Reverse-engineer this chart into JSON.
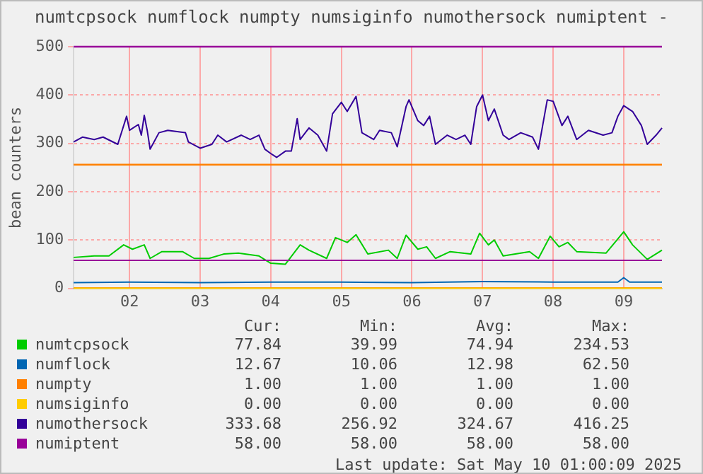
{
  "chart_data": {
    "type": "line",
    "title": "numtcpsock numflock numpty numsiginfo numothersock numiptent -",
    "ylabel": "bean counters",
    "xlim": [
      "2025-05-01T17:00",
      "2025-05-10T01:00"
    ],
    "xticks": [
      {
        "value": "2025-05-02T12:00",
        "label": "02"
      },
      {
        "value": "2025-05-03T12:00",
        "label": "03"
      },
      {
        "value": "2025-05-04T12:00",
        "label": "04"
      },
      {
        "value": "2025-05-05T12:00",
        "label": "05"
      },
      {
        "value": "2025-05-06T12:00",
        "label": "06"
      },
      {
        "value": "2025-05-07T12:00",
        "label": "07"
      },
      {
        "value": "2025-05-08T12:00",
        "label": "08"
      },
      {
        "value": "2025-05-09T12:00",
        "label": "09"
      }
    ],
    "ylim": [
      0,
      500
    ],
    "yticks": [
      0,
      100,
      200,
      300,
      400,
      500
    ],
    "grid": true,
    "legend": "bottom",
    "marker": "none",
    "ref_lines": [
      {
        "axis": "y",
        "value": 256,
        "label": null,
        "color": "#ff8000"
      },
      {
        "axis": "y",
        "value": 500,
        "label": null,
        "color": "#990099"
      }
    ],
    "series": [
      {
        "name": "numtcpsock",
        "color": "#00cc00",
        "x": [
          "2025-05-01T17:00",
          "2025-05-02T00:00",
          "2025-05-02T05:00",
          "2025-05-02T10:00",
          "2025-05-02T13:00",
          "2025-05-02T17:00",
          "2025-05-02T19:00",
          "2025-05-02T23:00",
          "2025-05-03T06:00",
          "2025-05-03T10:00",
          "2025-05-03T15:00",
          "2025-05-03T20:00",
          "2025-05-04T01:00",
          "2025-05-04T08:00",
          "2025-05-04T12:00",
          "2025-05-04T17:00",
          "2025-05-04T22:00",
          "2025-05-05T01:00",
          "2025-05-05T07:00",
          "2025-05-05T10:00",
          "2025-05-05T14:00",
          "2025-05-05T17:00",
          "2025-05-05T21:00",
          "2025-05-06T04:00",
          "2025-05-06T07:00",
          "2025-05-06T10:00",
          "2025-05-06T14:00",
          "2025-05-06T17:00",
          "2025-05-06T20:00",
          "2025-05-07T01:00",
          "2025-05-07T08:00",
          "2025-05-07T11:00",
          "2025-05-07T14:00",
          "2025-05-07T16:00",
          "2025-05-07T19:00",
          "2025-05-08T04:00",
          "2025-05-08T07:00",
          "2025-05-08T11:00",
          "2025-05-08T14:00",
          "2025-05-08T17:00",
          "2025-05-08T20:00",
          "2025-05-09T06:00",
          "2025-05-09T12:00",
          "2025-05-09T15:00",
          "2025-05-09T20:00",
          "2025-05-10T01:00"
        ],
        "values": [
          64,
          67,
          67,
          90,
          81,
          90,
          62,
          76,
          76,
          62,
          62,
          71,
          73,
          67,
          52,
          50,
          90,
          79,
          62,
          105,
          95,
          111,
          71,
          79,
          62,
          110,
          81,
          86,
          62,
          76,
          71,
          114,
          90,
          100,
          67,
          76,
          62,
          108,
          86,
          95,
          76,
          73,
          117,
          90,
          60,
          79
        ]
      },
      {
        "name": "numflock",
        "color": "#0066b3",
        "x": [
          "2025-05-01T17:00",
          "2025-05-02T12:00",
          "2025-05-03T12:00",
          "2025-05-04T12:00",
          "2025-05-05T12:00",
          "2025-05-06T12:00",
          "2025-05-07T12:00",
          "2025-05-08T12:00",
          "2025-05-09T10:00",
          "2025-05-09T12:00",
          "2025-05-09T14:00",
          "2025-05-10T01:00"
        ],
        "values": [
          12,
          13,
          12,
          13,
          13,
          12,
          14,
          13,
          13,
          22,
          13,
          13
        ]
      },
      {
        "name": "numpty",
        "color": "#ff8000",
        "x": [
          "2025-05-01T17:00",
          "2025-05-10T01:00"
        ],
        "values": [
          1,
          1
        ]
      },
      {
        "name": "numsiginfo",
        "color": "#ffcc00",
        "x": [
          "2025-05-01T17:00",
          "2025-05-10T01:00"
        ],
        "values": [
          0,
          0
        ]
      },
      {
        "name": "numothersock",
        "color": "#330099",
        "x": [
          "2025-05-01T17:00",
          "2025-05-01T20:00",
          "2025-05-02T00:00",
          "2025-05-02T03:00",
          "2025-05-02T08:00",
          "2025-05-02T11:00",
          "2025-05-02T12:00",
          "2025-05-02T15:00",
          "2025-05-02T16:00",
          "2025-05-02T17:00",
          "2025-05-02T18:00",
          "2025-05-02T19:00",
          "2025-05-02T22:00",
          "2025-05-03T01:00",
          "2025-05-03T07:00",
          "2025-05-03T08:00",
          "2025-05-03T12:00",
          "2025-05-03T16:00",
          "2025-05-03T18:00",
          "2025-05-03T21:00",
          "2025-05-04T02:00",
          "2025-05-04T05:00",
          "2025-05-04T08:00",
          "2025-05-04T10:00",
          "2025-05-04T12:00",
          "2025-05-04T14:00",
          "2025-05-04T17:00",
          "2025-05-04T19:00",
          "2025-05-04T21:00",
          "2025-05-04T22:00",
          "2025-05-05T01:00",
          "2025-05-05T04:00",
          "2025-05-05T07:00",
          "2025-05-05T09:00",
          "2025-05-05T12:00",
          "2025-05-05T14:00",
          "2025-05-05T17:00",
          "2025-05-05T19:00",
          "2025-05-05T23:00",
          "2025-05-06T01:00",
          "2025-05-06T05:00",
          "2025-05-06T07:00",
          "2025-05-06T10:00",
          "2025-05-06T11:00",
          "2025-05-06T14:00",
          "2025-05-06T16:00",
          "2025-05-06T18:00",
          "2025-05-06T20:00",
          "2025-05-07T00:00",
          "2025-05-07T03:00",
          "2025-05-07T06:00",
          "2025-05-07T08:00",
          "2025-05-07T10:00",
          "2025-05-07T12:00",
          "2025-05-07T14:00",
          "2025-05-07T16:00",
          "2025-05-07T19:00",
          "2025-05-07T21:00",
          "2025-05-08T01:00",
          "2025-05-08T05:00",
          "2025-05-08T07:00",
          "2025-05-08T10:00",
          "2025-05-08T12:00",
          "2025-05-08T15:00",
          "2025-05-08T17:00",
          "2025-05-08T20:00",
          "2025-05-09T00:00",
          "2025-05-09T05:00",
          "2025-05-09T08:00",
          "2025-05-09T10:00",
          "2025-05-09T12:00",
          "2025-05-09T15:00",
          "2025-05-09T18:00",
          "2025-05-09T20:00",
          "2025-05-09T23:00",
          "2025-05-10T01:00"
        ],
        "values": [
          303,
          313,
          308,
          313,
          298,
          356,
          327,
          339,
          317,
          358,
          327,
          288,
          322,
          327,
          322,
          303,
          290,
          298,
          317,
          303,
          317,
          308,
          317,
          288,
          279,
          271,
          284,
          284,
          351,
          308,
          332,
          317,
          284,
          361,
          385,
          366,
          397,
          322,
          308,
          327,
          322,
          293,
          376,
          390,
          347,
          337,
          356,
          298,
          317,
          308,
          317,
          298,
          376,
          400,
          347,
          371,
          317,
          308,
          322,
          313,
          288,
          390,
          387,
          337,
          356,
          308,
          327,
          317,
          322,
          356,
          378,
          366,
          337,
          298,
          317,
          332
        ]
      },
      {
        "name": "numiptent",
        "color": "#990099",
        "x": [
          "2025-05-01T17:00",
          "2025-05-10T01:00"
        ],
        "values": [
          58,
          58
        ]
      }
    ],
    "annotations": [
      "Cur:",
      "Min:",
      "Avg:",
      "Max:",
      "77.84",
      "39.99",
      "74.94",
      "234.53",
      "12.67",
      "10.06",
      "12.98",
      "62.50",
      "1.00",
      "1.00",
      "1.00",
      "1.00",
      "0.00",
      "0.00",
      "0.00",
      "0.00",
      "333.68",
      "256.92",
      "324.67",
      "416.25",
      "58.00",
      "58.00",
      "58.00",
      "58.00",
      "Last update: Sat May 10 01:00:09 2025"
    ]
  }
}
